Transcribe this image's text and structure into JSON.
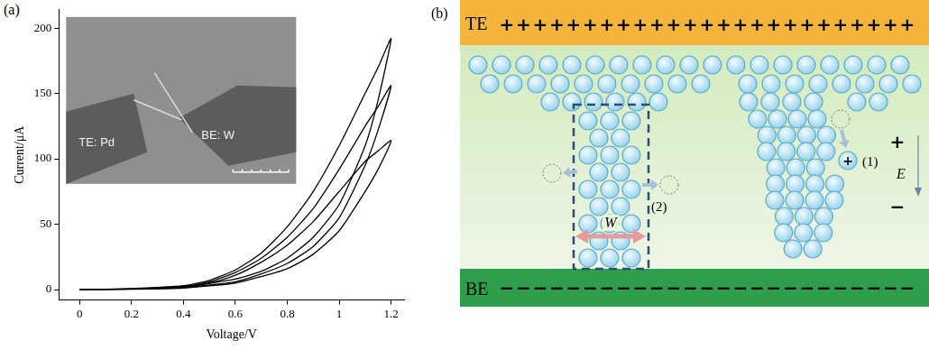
{
  "chart_data": {
    "type": "line",
    "panel": "(a)",
    "x_label": "Voltage/V",
    "y_label": "Current/μA",
    "xlim": [
      -0.08,
      1.25
    ],
    "ylim": [
      -8,
      214
    ],
    "xticks": [
      0,
      0.2,
      0.4,
      0.6,
      0.8,
      1,
      1.2
    ],
    "yticks": [
      0,
      50,
      100,
      150,
      200
    ],
    "grid": false,
    "series": [
      {
        "color": "#000000",
        "x": [
          0,
          0.2,
          0.4,
          0.6,
          0.7,
          0.8,
          0.9,
          1.0,
          1.1,
          1.15,
          1.2,
          1.15,
          1.1,
          1.0,
          0.9,
          0.8,
          0.7,
          0.6,
          0.5,
          0.4,
          0.2,
          0
        ],
        "values": [
          0,
          0.3,
          1.2,
          5,
          10,
          16,
          27,
          45,
          75,
          92,
          114,
          106,
          98,
          75,
          52,
          34,
          21,
          11,
          5,
          2,
          0.5,
          0
        ]
      },
      {
        "color": "#000000",
        "x": [
          0,
          0.2,
          0.4,
          0.6,
          0.7,
          0.8,
          0.9,
          1.0,
          1.1,
          1.15,
          1.2,
          1.15,
          1.1,
          1.0,
          0.9,
          0.8,
          0.7,
          0.6,
          0.5,
          0.4,
          0.2,
          0
        ],
        "values": [
          0,
          0.4,
          1.5,
          6,
          12,
          20,
          33,
          55,
          95,
          122,
          156,
          140,
          125,
          92,
          62,
          40,
          24,
          13,
          6,
          2.5,
          0.6,
          0
        ]
      },
      {
        "color": "#000000",
        "x": [
          0,
          0.2,
          0.4,
          0.6,
          0.7,
          0.8,
          0.9,
          1.0,
          1.1,
          1.15,
          1.2,
          1.15,
          1.1,
          1.0,
          0.9,
          0.8,
          0.7,
          0.6,
          0.5,
          0.4,
          0.2,
          0
        ],
        "values": [
          0,
          0.5,
          2,
          8,
          14,
          24,
          40,
          65,
          110,
          145,
          192,
          170,
          150,
          110,
          75,
          48,
          28,
          15,
          7,
          3,
          0.8,
          0
        ]
      }
    ],
    "inset": {
      "labels": [
        "TE: Pd",
        "BE: W"
      ]
    }
  },
  "diagram": {
    "panel": "(b)",
    "top_electrode": {
      "label": "TE",
      "charge": "+"
    },
    "bottom_electrode": {
      "label": "BE",
      "charge": "−"
    },
    "process_labels": [
      "(1)",
      "(2)"
    ],
    "width_label": "W",
    "ion_charge": "+",
    "field": {
      "label": "E",
      "positive": "+",
      "negative": "−"
    }
  }
}
